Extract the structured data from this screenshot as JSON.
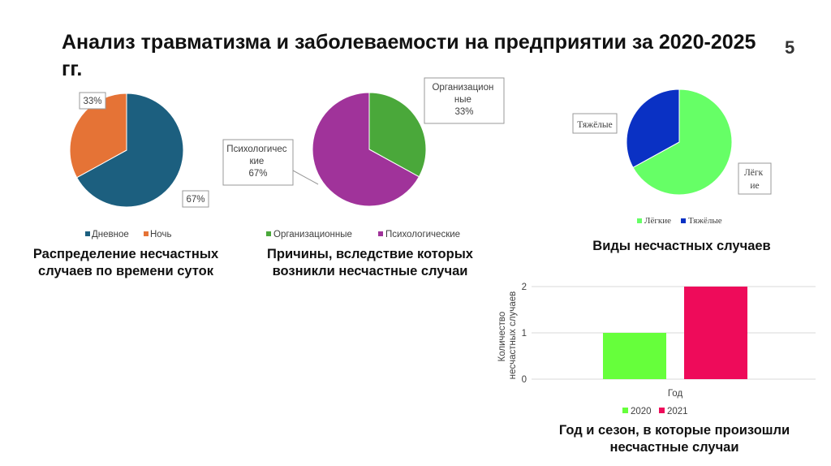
{
  "title": "Анализ травматизма и заболеваемости на предприятии за 2020-2025 гг.",
  "page_number": "5",
  "captions": {
    "time_of_day": "Распределение несчастных случаев по времени суток",
    "causes": "Причины, вследствие которых возникли несчастные случаи",
    "types": "Виды несчастных случаев",
    "year_season": "Год и сезон, в которые произошли несчастные случаи"
  },
  "colors": {
    "day": "#1c5f7f",
    "night": "#e57336",
    "org": "#4aa83a",
    "psych": "#a0339a",
    "light": "#66ff66",
    "heavy": "#0a31c4",
    "y2020": "#66ff3b",
    "y2021": "#ee0b5a"
  },
  "chart_data": [
    {
      "type": "pie",
      "categories": [
        "Дневное",
        "Ночь"
      ],
      "values": [
        67,
        33
      ],
      "data_labels": [
        "67%",
        "33%"
      ],
      "legend": "bottom"
    },
    {
      "type": "pie",
      "categories": [
        "Организационные",
        "Психологические"
      ],
      "values": [
        33,
        67
      ],
      "data_labels": [
        "Организационные\n33%",
        "Психологические\n67%"
      ],
      "legend": "bottom"
    },
    {
      "type": "pie",
      "categories": [
        "Лёгкие",
        "Тяжёлые"
      ],
      "values": [
        67,
        33
      ],
      "data_labels": [
        "Лёгкие",
        "Тяжёлые"
      ],
      "legend": "bottom"
    },
    {
      "type": "bar",
      "categories": [
        "Год"
      ],
      "series": [
        {
          "name": "2020",
          "values": [
            1
          ]
        },
        {
          "name": "2021",
          "values": [
            2
          ]
        }
      ],
      "ylabel": "Количество несчастных случаев",
      "ylim": [
        0,
        2
      ],
      "yticks": [
        "0",
        "1",
        "2"
      ],
      "grid": true,
      "legend": "bottom"
    }
  ],
  "labels": {
    "pie1_day": "67%",
    "pie1_night": "33%",
    "pie2_org": [
      "Организацион",
      "ные",
      "33%"
    ],
    "pie2_psych": [
      "Психологичес",
      "кие",
      "67%"
    ],
    "pie3_heavy": "Тяжёлые",
    "pie3_light": [
      "Лёгк",
      "ие"
    ],
    "bar_ylabel": [
      "Количество",
      "несчастных случаев"
    ]
  }
}
